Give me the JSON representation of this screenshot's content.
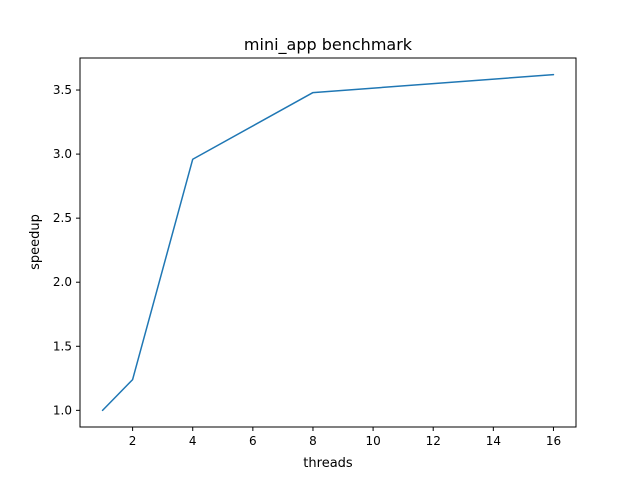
{
  "chart_data": {
    "type": "line",
    "title": "mini_app benchmark",
    "xlabel": "threads",
    "ylabel": "speedup",
    "x": [
      1,
      2,
      4,
      8,
      16
    ],
    "series": [
      {
        "values": [
          1.0,
          1.24,
          2.96,
          3.48,
          3.62
        ],
        "color": "#1f77b4"
      }
    ],
    "xlim": [
      0.25,
      16.75
    ],
    "ylim": [
      0.87,
      3.75
    ],
    "xticks": [
      2,
      4,
      6,
      8,
      10,
      12,
      14,
      16
    ],
    "yticks": [
      1.0,
      1.5,
      2.0,
      2.5,
      3.0,
      3.5
    ],
    "xtick_labels": [
      "2",
      "4",
      "6",
      "8",
      "10",
      "12",
      "14",
      "16"
    ],
    "ytick_labels": [
      "1.0",
      "1.5",
      "2.0",
      "2.5",
      "3.0",
      "3.5"
    ],
    "grid": false,
    "legend": "none"
  }
}
